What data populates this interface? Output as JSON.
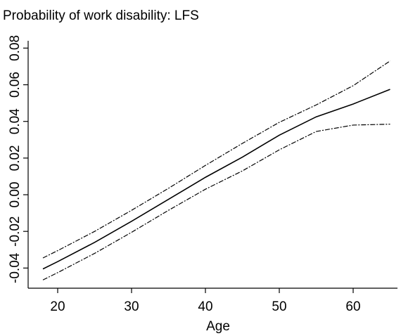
{
  "chart_data": {
    "type": "line",
    "title": "Probability of work disability: LFS",
    "xlabel": "Age",
    "ylabel": "",
    "xlim": [
      16,
      66
    ],
    "ylim": [
      -0.051,
      0.084
    ],
    "xticks": [
      20,
      30,
      40,
      50,
      60
    ],
    "xtick_labels": [
      "20",
      "30",
      "40",
      "50",
      "60"
    ],
    "yticks": [
      -0.04,
      -0.02,
      0.0,
      0.02,
      0.04,
      0.06,
      0.08
    ],
    "ytick_labels": [
      "-0.04",
      "-0.02",
      "0.00",
      "0.02",
      "0.04",
      "0.06",
      "0.08"
    ],
    "grid": false,
    "legend": false,
    "series": [
      {
        "style": "solid",
        "x": [
          18,
          20,
          25,
          30,
          35,
          40,
          45,
          50,
          55,
          60,
          65
        ],
        "values": [
          -0.0405,
          -0.0365,
          -0.026,
          -0.0145,
          -0.0025,
          0.0095,
          0.0205,
          0.0325,
          0.0425,
          0.0495,
          0.0575
        ]
      },
      {
        "style": "dash-dot",
        "x": [
          18,
          20,
          25,
          30,
          35,
          40,
          45,
          50,
          55,
          60,
          65
        ],
        "values": [
          -0.0345,
          -0.0305,
          -0.02,
          -0.0085,
          0.0035,
          0.016,
          0.028,
          0.0395,
          0.049,
          0.0595,
          0.073
        ]
      },
      {
        "style": "dash-dot",
        "x": [
          18,
          20,
          25,
          30,
          35,
          40,
          45,
          50,
          55,
          60,
          65
        ],
        "values": [
          -0.0465,
          -0.0425,
          -0.032,
          -0.0205,
          -0.0085,
          0.003,
          0.013,
          0.0245,
          0.0345,
          0.038,
          0.0385
        ]
      }
    ]
  }
}
